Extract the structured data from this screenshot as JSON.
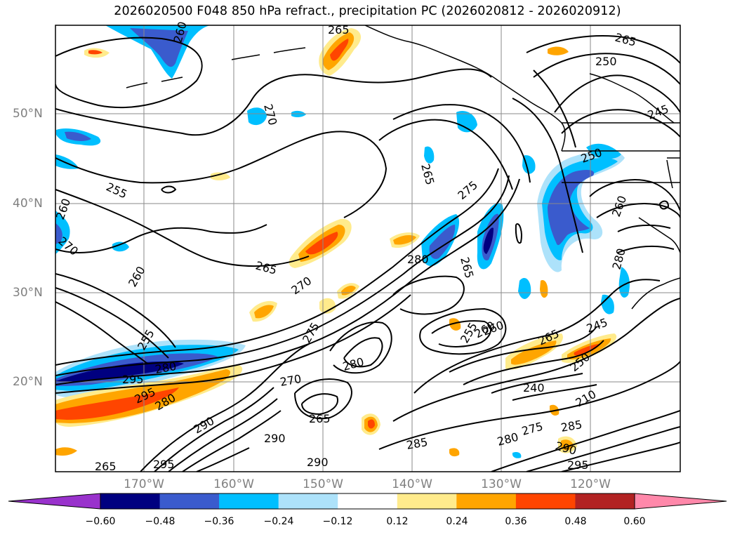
{
  "title": "2026020500 F048 850 hPa refract., precipitation PC (2026020812 - 2026020912)",
  "lat_labels": [
    "50°N",
    "40°N",
    "30°N",
    "20°N"
  ],
  "lon_labels": [
    "170°W",
    "160°W",
    "150°W",
    "140°W",
    "130°W",
    "120°W"
  ],
  "colorbar": {
    "ticks": [
      "−0.60",
      "−0.48",
      "−0.36",
      "−0.24",
      "−0.12",
      "0.12",
      "0.24",
      "0.36",
      "0.48",
      "0.60"
    ],
    "colors": [
      "#9932cc",
      "#000080",
      "#3a5bcd",
      "#00bfff",
      "#ade2fa",
      "#ffffff",
      "#ffeb8c",
      "#ffa500",
      "#ff4500",
      "#b22222",
      "#ff88aa"
    ]
  },
  "contour_labels": [
    "265",
    "260",
    "250",
    "265",
    "245",
    "270",
    "255",
    "260",
    "265",
    "275",
    "260",
    "270",
    "280",
    "265",
    "260",
    "265",
    "280",
    "270",
    "260",
    "255",
    "280",
    "295",
    "280",
    "270",
    "275",
    "265",
    "285",
    "290",
    "290",
    "295",
    "295",
    "255",
    "260",
    "265",
    "245",
    "250",
    "240",
    "250",
    "280",
    "285",
    "290",
    "275",
    "295",
    "280",
    "265",
    "290",
    "210"
  ]
}
